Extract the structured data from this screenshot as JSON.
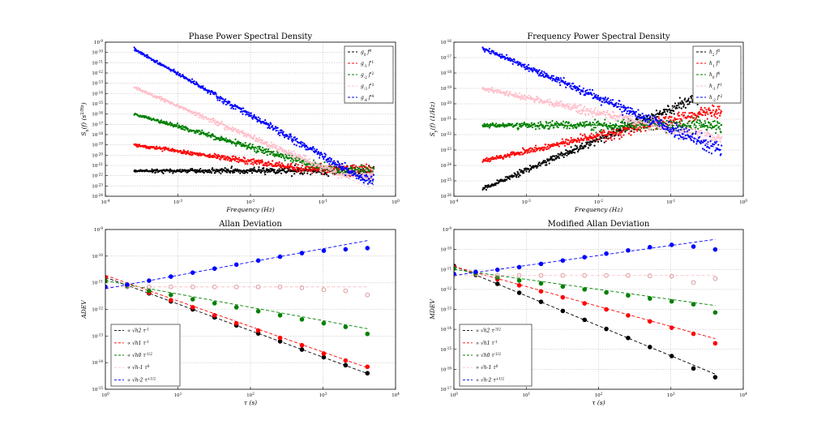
{
  "figure": {
    "background": "#ffffff"
  },
  "chart_data": [
    {
      "type": "scatter",
      "title": "Phase Power Spectral Density",
      "xlabel": "Frequency (Hz)",
      "ylabel": "S_x(f) (s^2/Hz)",
      "xscale": "log",
      "yscale": "log",
      "xlim": [
        0.0001,
        1
      ],
      "ylim": [
        1e-24,
        1e-09
      ],
      "xticks": [
        "10^-4",
        "10^-3",
        "10^-2",
        "10^-1",
        "10^0"
      ],
      "yticks": [
        "10^-24",
        "10^-23",
        "10^-22",
        "10^-21",
        "10^-20",
        "10^-19",
        "10^-18",
        "10^-17",
        "10^-16",
        "10^-15",
        "10^-14",
        "10^-13",
        "10^-12",
        "10^-11",
        "10^-10",
        "10^-9"
      ],
      "grid": true,
      "legend_position": "top-right",
      "series": [
        {
          "name": "g_0 f^0",
          "color": "#000000",
          "fit": {
            "x0": 0.00025,
            "y0": 3e-22,
            "slope": 0,
            "x1": 0.5
          },
          "points": {
            "x0": 0.00025,
            "y0": 3e-22,
            "slope": 0
          }
        },
        {
          "name": "g_-1 f^-1",
          "color": "#ff0000",
          "fit": {
            "x0": 0.00025,
            "y0": 1e-19,
            "slope": -1,
            "x1": 0.5
          },
          "points": {
            "x0": 0.00025,
            "y0": 1e-19,
            "slope": -1,
            "floor": 4e-22
          }
        },
        {
          "name": "g_-2 f^-2",
          "color": "#008000",
          "fit": {
            "x0": 0.00025,
            "y0": 1e-16,
            "slope": -2,
            "x1": 0.5
          },
          "points": {
            "x0": 0.00025,
            "y0": 1e-16,
            "slope": -2,
            "floor": 3e-22
          }
        },
        {
          "name": "g_-3 f^-3",
          "color": "#ffc0cb",
          "fit": {
            "x0": 0.00025,
            "y0": 4e-14,
            "slope": -3,
            "x1": 0.5
          },
          "points": {
            "x0": 0.00025,
            "y0": 4e-14,
            "slope": -3,
            "floor": 1.5e-22
          }
        },
        {
          "name": "g_-4 f^-4",
          "color": "#0000ff",
          "fit": {
            "x0": 0.00025,
            "y0": 2e-10,
            "slope": -4,
            "x1": 0.5
          },
          "points": {
            "x0": 0.00025,
            "y0": 2e-10,
            "slope": -4,
            "floor": 4e-23
          }
        }
      ]
    },
    {
      "type": "scatter",
      "title": "Frequency Power Spectral Density",
      "xlabel": "Frequency (Hz)",
      "ylabel": "S_y(f) (1/Hz)",
      "xscale": "log",
      "yscale": "log",
      "xlim": [
        0.0001,
        1
      ],
      "ylim": [
        1e-26,
        1e-16
      ],
      "xticks": [
        "10^-4",
        "10^-3",
        "10^-2",
        "10^-1",
        "10^0"
      ],
      "yticks": [
        "10^-26",
        "10^-25",
        "10^-24",
        "10^-23",
        "10^-22",
        "10^-21",
        "10^-20",
        "10^-19",
        "10^-18",
        "10^-17",
        "10^-16"
      ],
      "grid": true,
      "legend_position": "top-right",
      "series": [
        {
          "name": "h_2 f^2",
          "color": "#000000",
          "fit": {
            "x0": 0.00025,
            "y0": 3e-26,
            "slope": 2,
            "x1": 0.5
          },
          "points": {
            "x0": 0.00025,
            "y0": 3e-26,
            "slope": 2
          }
        },
        {
          "name": "h_1 f^1",
          "color": "#ff0000",
          "fit": {
            "x0": 0.00025,
            "y0": 2e-24,
            "slope": 1,
            "x1": 0.5
          },
          "points": {
            "x0": 0.00025,
            "y0": 2e-24,
            "slope": 1
          }
        },
        {
          "name": "h_0 f^0",
          "color": "#008000",
          "fit": {
            "x0": 0.00025,
            "y0": 4e-22,
            "slope": 0,
            "x1": 0.5
          },
          "points": {
            "x0": 0.00025,
            "y0": 4e-22,
            "slope": 0
          }
        },
        {
          "name": "h_-1 f^-1",
          "color": "#ffc0cb",
          "fit": {
            "x0": 0.00025,
            "y0": 1e-19,
            "slope": -1,
            "x1": 0.5
          },
          "points": {
            "x0": 0.00025,
            "y0": 1e-19,
            "slope": -1
          }
        },
        {
          "name": "h_-2 f^-2",
          "color": "#0000ff",
          "fit": {
            "x0": 0.00025,
            "y0": 4e-17,
            "slope": -2,
            "x1": 0.5
          },
          "points": {
            "x0": 0.00025,
            "y0": 4e-17,
            "slope": -2
          }
        }
      ]
    },
    {
      "type": "scatter",
      "title": "Allan Deviation",
      "xlabel": "τ (s)",
      "ylabel": "ADEV",
      "xscale": "log",
      "yscale": "log",
      "xlim": [
        1,
        10000
      ],
      "ylim": [
        1e-15,
        1e-09
      ],
      "xticks": [
        "10^0",
        "10^1",
        "10^2",
        "10^3",
        "10^4"
      ],
      "yticks": [
        "10^-15",
        "10^-14",
        "10^-13",
        "10^-12",
        "10^-11",
        "10^-10",
        "10^-9"
      ],
      "grid": true,
      "legend_position": "bottom-left",
      "x": [
        1,
        2,
        4,
        8,
        16,
        32,
        64,
        128,
        256,
        512,
        1024,
        2048,
        4096
      ],
      "series": [
        {
          "name": "∝ √h2 τ^-1",
          "color": "#000000",
          "open": false,
          "values": [
            1.6e-11,
            8e-12,
            4e-12,
            2e-12,
            1e-12,
            5e-13,
            2.5e-13,
            1.25e-13,
            6.3e-14,
            3.1e-14,
            1.6e-14,
            8e-15,
            4e-15
          ],
          "fit": {
            "x0": 1,
            "y0": 1.6e-11,
            "slope": -1,
            "x1": 4096
          }
        },
        {
          "name": "∝ √h1 τ^-1",
          "color": "#ff0000",
          "open": false,
          "values": [
            1.5e-11,
            8e-12,
            4.2e-12,
            2.2e-12,
            1.2e-12,
            6e-13,
            3e-13,
            1.6e-13,
            8.5e-14,
            4.5e-14,
            2.2e-14,
            1.2e-14,
            7e-15
          ],
          "fit": {
            "x0": 1,
            "y0": 1.9e-11,
            "slope": -0.96,
            "x1": 4096
          }
        },
        {
          "name": "∝ √h0 τ^-1/2",
          "color": "#008000",
          "open": false,
          "values": [
            1.2e-11,
            7.5e-12,
            5e-12,
            3.5e-12,
            2.4e-12,
            1.7e-12,
            1.2e-12,
            8.5e-13,
            6e-13,
            4.2e-13,
            3e-13,
            2.2e-13,
            1.2e-13
          ],
          "fit": {
            "x0": 1,
            "y0": 1.2e-11,
            "slope": -0.5,
            "x1": 4096
          }
        },
        {
          "name": "∝ √h-1 τ^0",
          "color": "#ffc0cb",
          "open": true,
          "values": [
            7e-12,
            7e-12,
            7e-12,
            7e-12,
            7e-12,
            7e-12,
            7e-12,
            7e-12,
            7e-12,
            6.5e-12,
            5.5e-12,
            5e-12,
            3.5e-12
          ],
          "fit": {
            "x0": 1,
            "y0": 7e-12,
            "slope": 0,
            "x1": 4096
          }
        },
        {
          "name": "∝ √h-2 τ^+1/2",
          "color": "#0000ff",
          "open": false,
          "values": [
            7e-12,
            8.5e-12,
            1.2e-11,
            1.7e-11,
            2.4e-11,
            3.4e-11,
            4.8e-11,
            6.8e-11,
            9.5e-11,
            1.3e-10,
            1.6e-10,
            1.8e-10,
            2e-10
          ],
          "fit": {
            "x0": 1,
            "y0": 6e-12,
            "slope": 0.5,
            "x1": 4096
          }
        }
      ]
    },
    {
      "type": "scatter",
      "title": "Modified Allan Deviation",
      "xlabel": "τ (s)",
      "ylabel": "MDEV",
      "xscale": "log",
      "yscale": "log",
      "xlim": [
        1,
        10000
      ],
      "ylim": [
        1e-17,
        1e-09
      ],
      "xticks": [
        "10^0",
        "10^1",
        "10^2",
        "10^3",
        "10^4"
      ],
      "yticks": [
        "10^-17",
        "10^-16",
        "10^-15",
        "10^-14",
        "10^-13",
        "10^-12",
        "10^-11",
        "10^-10",
        "10^-9"
      ],
      "grid": true,
      "legend_position": "bottom-left",
      "x": [
        1,
        2,
        4,
        8,
        16,
        32,
        64,
        128,
        256,
        512,
        1024,
        2048,
        4096
      ],
      "series": [
        {
          "name": "∝ √h2 τ^-3/2",
          "color": "#000000",
          "open": false,
          "values": [
            1.5e-11,
            5.5e-12,
            1.9e-12,
            6.8e-13,
            2.4e-13,
            8.4e-14,
            3e-14,
            1.05e-14,
            3.7e-15,
            1.3e-15,
            4.6e-16,
            1.1e-16,
            4e-17
          ],
          "fit": {
            "x0": 1,
            "y0": 1.5e-11,
            "slope": -1.5,
            "x1": 4096
          }
        },
        {
          "name": "∝ √h1 τ^-1",
          "color": "#ff0000",
          "open": false,
          "values": [
            1.3e-11,
            6.5e-12,
            3.2e-12,
            1.6e-12,
            8e-13,
            4e-13,
            2e-13,
            1e-13,
            5e-14,
            2.5e-14,
            1.2e-14,
            6e-15,
            2e-15
          ],
          "fit": {
            "x0": 1,
            "y0": 1.4e-11,
            "slope": -1,
            "x1": 4096
          }
        },
        {
          "name": "∝ √h0 τ^-1/2",
          "color": "#008000",
          "open": false,
          "values": [
            1.1e-11,
            6e-12,
            4e-12,
            2.8e-12,
            2e-12,
            1.4e-12,
            1e-12,
            7e-13,
            5e-13,
            3.5e-13,
            2.5e-13,
            1.8e-13,
            7e-14
          ],
          "fit": {
            "x0": 1,
            "y0": 1e-11,
            "slope": -0.5,
            "x1": 4096
          }
        },
        {
          "name": "∝ √h-1 τ^0",
          "color": "#ffc0cb",
          "open": true,
          "values": [
            5e-12,
            5e-12,
            5e-12,
            5e-12,
            5e-12,
            5e-12,
            5e-12,
            5e-12,
            5e-12,
            4.8e-12,
            4.6e-12,
            2.2e-12,
            3.5e-12
          ],
          "fit": {
            "x0": 1,
            "y0": 5e-12,
            "slope": 0,
            "x1": 4096
          }
        },
        {
          "name": "∝ √h-2 τ^+1/2",
          "color": "#0000ff",
          "open": false,
          "values": [
            6e-12,
            7.5e-12,
            9.6e-12,
            1.3e-11,
            1.9e-11,
            2.8e-11,
            4.1e-11,
            6.2e-11,
            9e-11,
            1.3e-10,
            1.7e-10,
            1.4e-10,
            1e-10
          ],
          "fit": {
            "x0": 1,
            "y0": 5e-12,
            "slope": 0.5,
            "x1": 4096
          }
        }
      ]
    }
  ]
}
